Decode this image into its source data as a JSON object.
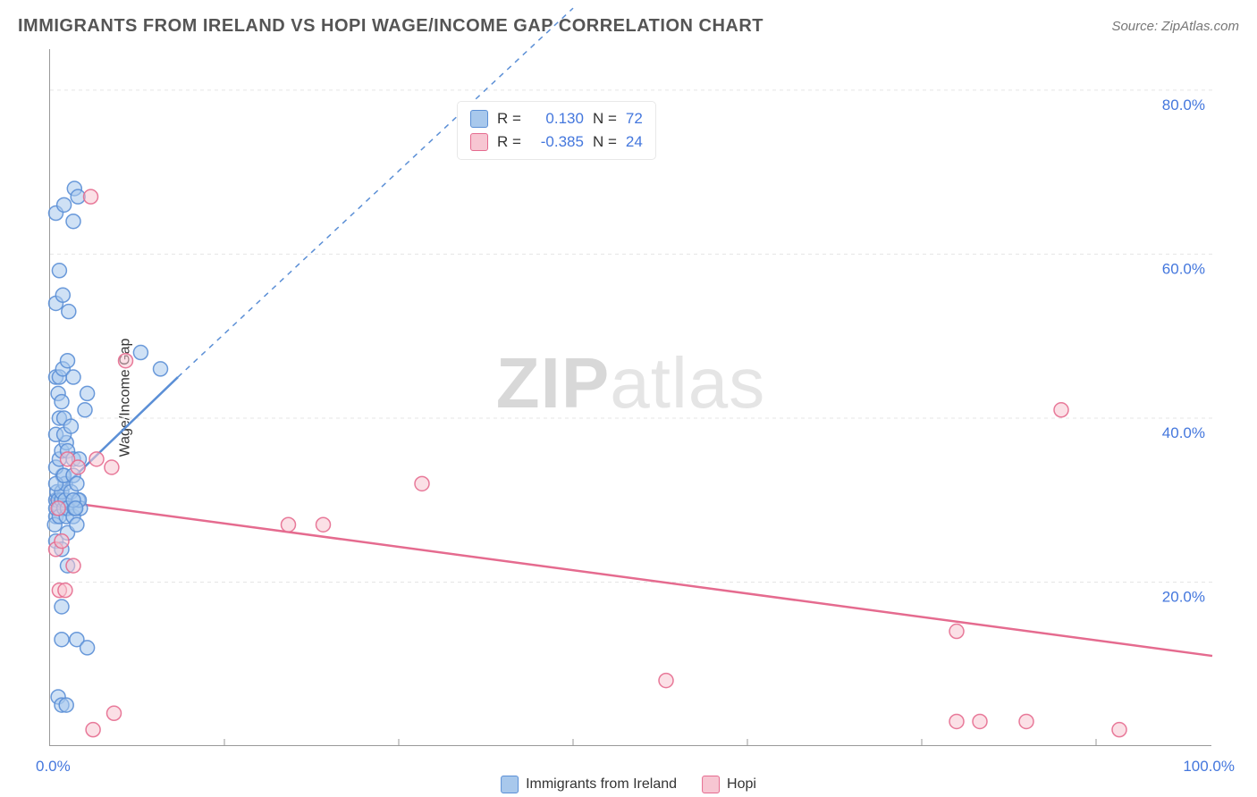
{
  "title": "IMMIGRANTS FROM IRELAND VS HOPI WAGE/INCOME GAP CORRELATION CHART",
  "source": "Source: ZipAtlas.com",
  "watermark": "ZIPatlas",
  "y_axis_label": "Wage/Income Gap",
  "chart": {
    "type": "scatter",
    "background_color": "#ffffff",
    "grid_color": "#e5e5e5",
    "grid_dash": "4 4",
    "axis_color": "#999999",
    "x_min": 0,
    "x_max": 100,
    "y_min": 0,
    "y_max": 85,
    "x_ticks": [
      0,
      100
    ],
    "x_tick_labels": [
      "0.0%",
      "100.0%"
    ],
    "x_minor_ticks": [
      15,
      30,
      45,
      60,
      75,
      90
    ],
    "y_ticks": [
      20,
      40,
      60,
      80
    ],
    "y_tick_labels": [
      "20.0%",
      "40.0%",
      "60.0%",
      "80.0%"
    ],
    "marker_radius": 8,
    "marker_opacity": 0.55,
    "marker_stroke_opacity": 0.9,
    "series": [
      {
        "name": "Immigrants from Ireland",
        "color_fill": "#a8c8ec",
        "color_stroke": "#5b8fd6",
        "R": "0.130",
        "N": "72",
        "trend": {
          "x1": 0,
          "y1": 30,
          "x2": 11,
          "y2": 45,
          "dash_x2": 45,
          "dash_y2": 90
        },
        "points": [
          [
            0.5,
            28
          ],
          [
            0.5,
            29
          ],
          [
            0.5,
            30
          ],
          [
            0.6,
            31
          ],
          [
            0.4,
            27
          ],
          [
            0.7,
            30
          ],
          [
            0.8,
            29
          ],
          [
            0.8,
            28
          ],
          [
            1.0,
            30
          ],
          [
            1.2,
            29
          ],
          [
            1.0,
            31
          ],
          [
            1.1,
            33
          ],
          [
            1.3,
            32
          ],
          [
            1.4,
            28
          ],
          [
            1.3,
            30
          ],
          [
            1.5,
            29
          ],
          [
            0.5,
            34
          ],
          [
            0.8,
            35
          ],
          [
            1.0,
            36
          ],
          [
            1.4,
            37
          ],
          [
            0.5,
            38
          ],
          [
            1.2,
            38
          ],
          [
            0.8,
            40
          ],
          [
            1.2,
            40
          ],
          [
            1.8,
            39
          ],
          [
            0.7,
            43
          ],
          [
            1.0,
            42
          ],
          [
            0.5,
            45
          ],
          [
            0.8,
            45
          ],
          [
            1.1,
            46
          ],
          [
            1.5,
            47
          ],
          [
            0.5,
            54
          ],
          [
            1.1,
            55
          ],
          [
            1.6,
            53
          ],
          [
            0.8,
            58
          ],
          [
            0.5,
            65
          ],
          [
            1.2,
            66
          ],
          [
            2.0,
            64
          ],
          [
            2.1,
            68
          ],
          [
            2.4,
            67
          ],
          [
            0.5,
            25
          ],
          [
            1.0,
            24
          ],
          [
            1.5,
            26
          ],
          [
            2.0,
            28
          ],
          [
            2.1,
            29
          ],
          [
            2.3,
            27
          ],
          [
            2.4,
            30
          ],
          [
            2.6,
            29
          ],
          [
            1.0,
            13
          ],
          [
            2.3,
            13
          ],
          [
            3.2,
            12
          ],
          [
            0.7,
            6
          ],
          [
            1.0,
            5
          ],
          [
            1.4,
            5
          ],
          [
            0.5,
            32
          ],
          [
            1.8,
            31
          ],
          [
            1.2,
            33
          ],
          [
            2.0,
            33
          ],
          [
            2.3,
            32
          ],
          [
            2.5,
            30
          ],
          [
            1.5,
            36
          ],
          [
            2.0,
            35
          ],
          [
            2.5,
            35
          ],
          [
            3.0,
            41
          ],
          [
            3.2,
            43
          ],
          [
            2.0,
            45
          ],
          [
            2.0,
            30
          ],
          [
            2.2,
            29
          ],
          [
            1.0,
            17
          ],
          [
            1.5,
            22
          ],
          [
            7.8,
            48
          ],
          [
            9.5,
            46
          ]
        ]
      },
      {
        "name": "Hopi",
        "color_fill": "#f7c6d2",
        "color_stroke": "#e56b8f",
        "R": "-0.385",
        "N": "24",
        "trend": {
          "x1": 0,
          "y1": 30,
          "x2": 100,
          "y2": 11
        },
        "points": [
          [
            0.5,
            24
          ],
          [
            1.0,
            25
          ],
          [
            0.8,
            19
          ],
          [
            1.3,
            19
          ],
          [
            2.0,
            22
          ],
          [
            0.7,
            29
          ],
          [
            1.5,
            35
          ],
          [
            2.4,
            34
          ],
          [
            4.0,
            35
          ],
          [
            5.3,
            34
          ],
          [
            6.5,
            47
          ],
          [
            3.5,
            67
          ],
          [
            5.5,
            4
          ],
          [
            3.7,
            2
          ],
          [
            20.5,
            27
          ],
          [
            23.5,
            27
          ],
          [
            32.0,
            32
          ],
          [
            53.0,
            8
          ],
          [
            78.0,
            14
          ],
          [
            87.0,
            41
          ],
          [
            80.0,
            3
          ],
          [
            84.0,
            3
          ],
          [
            92.0,
            2
          ],
          [
            78.0,
            3
          ]
        ]
      }
    ]
  },
  "stats_box": {
    "rows": [
      {
        "swatch_fill": "#a8c8ec",
        "swatch_stroke": "#5b8fd6",
        "R_label": "R =",
        "R_val": "0.130",
        "N_label": "N =",
        "N_val": "72"
      },
      {
        "swatch_fill": "#f7c6d2",
        "swatch_stroke": "#e56b8f",
        "R_label": "R =",
        "R_val": "-0.385",
        "N_label": "N =",
        "N_val": "24"
      }
    ]
  },
  "bottom_legend": [
    {
      "swatch_fill": "#a8c8ec",
      "swatch_stroke": "#5b8fd6",
      "label": "Immigrants from Ireland"
    },
    {
      "swatch_fill": "#f7c6d2",
      "swatch_stroke": "#e56b8f",
      "label": "Hopi"
    }
  ]
}
